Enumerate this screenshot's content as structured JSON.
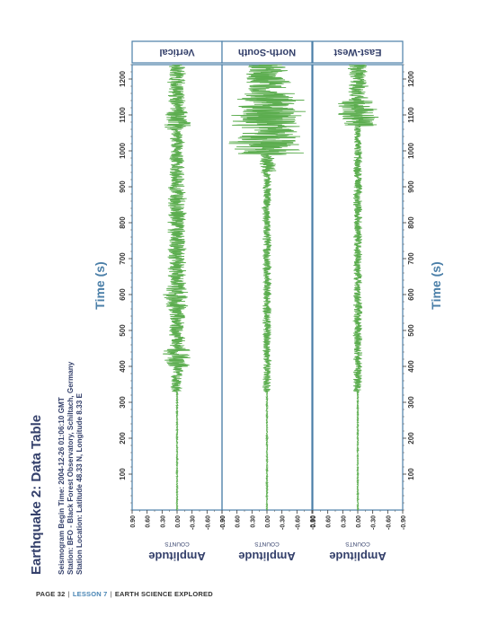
{
  "page_title": "Earthquake 2: Data Table",
  "info": {
    "line1": "Seismogram Begin Time: 2004-12-26 01:06:10 GMT",
    "line2": "Station: BFO - Black Forest Observatory, Schiltach, Germany",
    "line3": "Station Location: Latitude 48.33 N, Longitude 8.33 E"
  },
  "footer": {
    "page": "PAGE 32",
    "lesson": "LESSON 7",
    "book": "EARTH SCIENCE EXPLORED"
  },
  "colors": {
    "trace": "#5cad4f",
    "frame": "#4b7fa8",
    "title": "#34406b"
  },
  "chart_data": {
    "type": "line",
    "orientation": "rotated-90",
    "xlabel": "Time (s)",
    "ylabel": "Amplitude",
    "yunit": "COUNTS",
    "xlim": [
      0,
      1240
    ],
    "ylim": [
      -0.9,
      0.9
    ],
    "x_ticks": [
      "100",
      "200",
      "300",
      "400",
      "500",
      "600",
      "700",
      "800",
      "900",
      "1000",
      "1100",
      "1200"
    ],
    "y_ticks": [
      "0.90",
      "0.60",
      "0.30",
      "0.00",
      "-0.30",
      "-0.60",
      "-0.90"
    ],
    "panels": [
      {
        "name": "Vertical",
        "segments": [
          {
            "start": 0,
            "end": 330,
            "amplitude": 0.01
          },
          {
            "start": 330,
            "end": 400,
            "amplitude": 0.1
          },
          {
            "start": 400,
            "end": 450,
            "amplitude": 0.22
          },
          {
            "start": 450,
            "end": 560,
            "amplitude": 0.13
          },
          {
            "start": 560,
            "end": 620,
            "amplitude": 0.22
          },
          {
            "start": 620,
            "end": 900,
            "amplitude": 0.15
          },
          {
            "start": 900,
            "end": 1060,
            "amplitude": 0.12
          },
          {
            "start": 1060,
            "end": 1110,
            "amplitude": 0.22
          },
          {
            "start": 1110,
            "end": 1240,
            "amplitude": 0.15
          }
        ]
      },
      {
        "name": "North-South",
        "segments": [
          {
            "start": 0,
            "end": 330,
            "amplitude": 0.01
          },
          {
            "start": 330,
            "end": 940,
            "amplitude": 0.07
          },
          {
            "start": 940,
            "end": 990,
            "amplitude": 0.15
          },
          {
            "start": 990,
            "end": 1160,
            "amplitude": 0.6
          },
          {
            "start": 1160,
            "end": 1240,
            "amplitude": 0.38
          }
        ]
      },
      {
        "name": "East-West",
        "segments": [
          {
            "start": 0,
            "end": 330,
            "amplitude": 0.01
          },
          {
            "start": 330,
            "end": 1070,
            "amplitude": 0.07
          },
          {
            "start": 1070,
            "end": 1140,
            "amplitude": 0.32
          },
          {
            "start": 1140,
            "end": 1240,
            "amplitude": 0.17
          }
        ]
      }
    ]
  }
}
